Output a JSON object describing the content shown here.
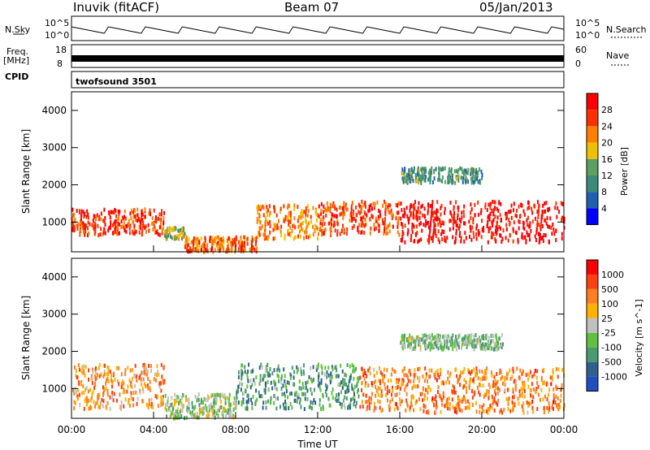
{
  "header": {
    "station": "Inuvik (fitACF)",
    "beam": "Beam 07",
    "date": "05/Jan/2013"
  },
  "top_panels": {
    "nsky_label": "N.Sky",
    "nsky_ticks": [
      "10^5",
      "10^0"
    ],
    "nsearch_label": "N.Search",
    "nsearch_ticks": [
      "10^5",
      "10^0"
    ],
    "freq_label": "Freq.",
    "freq_unit": "[MHz]",
    "freq_ticks": [
      "18",
      "8"
    ],
    "nave_label": "Nave",
    "nave_ticks": [
      "60",
      "0"
    ],
    "cpid_label": "CPID",
    "cpid_value": "twofsound 3501"
  },
  "colors": {
    "power_scale": [
      "#0000ff",
      "#2060b0",
      "#3a8a78",
      "#5aa060",
      "#f0c000",
      "#ff8000",
      "#ff3000",
      "#ff0000"
    ],
    "velocity_scale": [
      "#2050c0",
      "#306090",
      "#4a9a70",
      "#60c040",
      "#c0c0c0",
      "#ffb000",
      "#ff8020",
      "#ff4010",
      "#ff0000"
    ]
  },
  "chart_data": [
    {
      "type": "heatmap",
      "name": "power",
      "ylabel": "Slant Range [km]",
      "yticks": [
        "1000",
        "2000",
        "3000",
        "4000"
      ],
      "ylim": [
        200,
        4500
      ],
      "xticks": [
        "00:00",
        "04:00",
        "08:00",
        "12:00",
        "16:00",
        "20:00",
        "00:00"
      ],
      "colorbar_label": "Power [dB]",
      "colorbar_ticks": [
        "28",
        "24",
        "20",
        "16",
        "12",
        "8",
        "4"
      ],
      "regions": [
        {
          "t0": 0.0,
          "t1": 4.5,
          "r0": 700,
          "r1": 1400,
          "level": 0.85
        },
        {
          "t0": 4.5,
          "t1": 5.5,
          "r0": 600,
          "r1": 900,
          "level": 0.5
        },
        {
          "t0": 5.5,
          "t1": 9.0,
          "r0": 250,
          "r1": 650,
          "level": 0.75
        },
        {
          "t0": 9.0,
          "t1": 12.0,
          "r0": 600,
          "r1": 1500,
          "level": 0.7
        },
        {
          "t0": 12.0,
          "t1": 16.0,
          "r0": 700,
          "r1": 1600,
          "level": 0.8
        },
        {
          "t0": 16.0,
          "t1": 24.0,
          "r0": 500,
          "r1": 1600,
          "level": 0.95
        },
        {
          "t0": 16.0,
          "t1": 20.0,
          "r0": 2100,
          "r1": 2500,
          "level": 0.35
        }
      ]
    },
    {
      "type": "heatmap",
      "name": "velocity",
      "ylabel": "Slant Range [km]",
      "yticks": [
        "1000",
        "2000",
        "3000",
        "4000"
      ],
      "ylim": [
        200,
        4500
      ],
      "xticks": [
        "00:00",
        "04:00",
        "08:00",
        "12:00",
        "16:00",
        "20:00",
        "00:00"
      ],
      "xlabel": "Time UT",
      "colorbar_label": "Velocity [m s^-1]",
      "colorbar_ticks": [
        "1000",
        "500",
        "100",
        "25",
        "-25",
        "-100",
        "-500",
        "-1000"
      ],
      "regions": [
        {
          "t0": 0.0,
          "t1": 4.5,
          "r0": 500,
          "r1": 1700,
          "level": 0.7
        },
        {
          "t0": 4.5,
          "t1": 8.0,
          "r0": 250,
          "r1": 900,
          "level": 0.45
        },
        {
          "t0": 8.0,
          "t1": 14.0,
          "r0": 500,
          "r1": 1700,
          "level": 0.3
        },
        {
          "t0": 14.0,
          "t1": 24.0,
          "r0": 400,
          "r1": 1600,
          "level": 0.72
        },
        {
          "t0": 16.0,
          "t1": 21.0,
          "r0": 2100,
          "r1": 2500,
          "level": 0.4
        }
      ]
    }
  ]
}
